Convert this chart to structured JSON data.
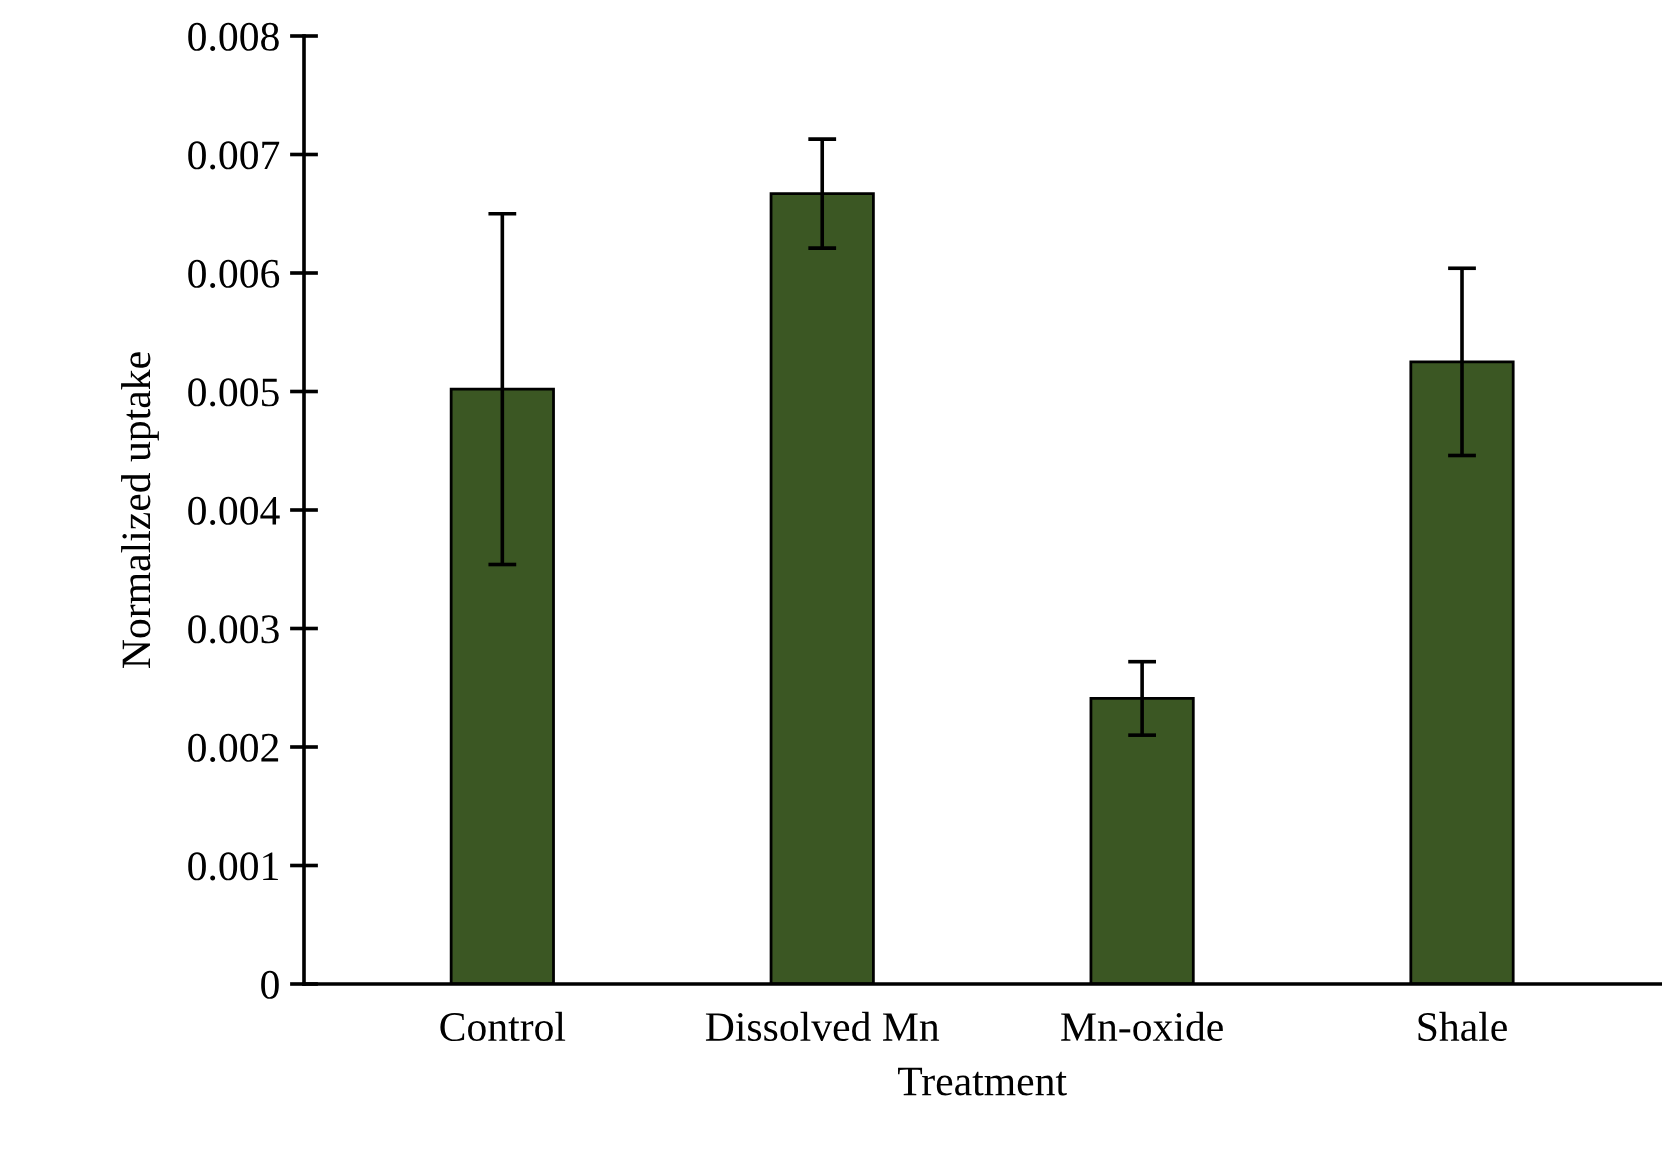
{
  "chart_data": {
    "type": "bar",
    "xlabel": "Treatment",
    "ylabel": "Normalized uptake",
    "categories": [
      "Control",
      "Dissolved Mn",
      "Mn-oxide",
      "Shale"
    ],
    "values": [
      0.00502,
      0.00667,
      0.00241,
      0.00525
    ],
    "errors": [
      0.00148,
      0.00046,
      0.00031,
      0.00079
    ],
    "color": "#3b5723",
    "ylim": [
      0,
      0.008
    ],
    "yticks": [
      0,
      0.001,
      0.002,
      0.003,
      0.004,
      0.005,
      0.006,
      0.007,
      0.008
    ],
    "grid": false,
    "legend": false
  }
}
